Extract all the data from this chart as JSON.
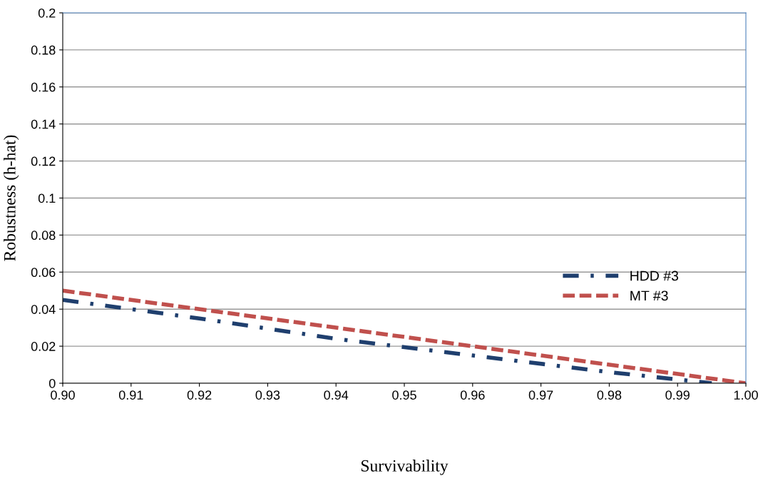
{
  "chart_data": {
    "type": "line",
    "xlabel": "Survivability",
    "ylabel": "Robustness (h-hat)",
    "xlim": [
      0.9,
      1.0
    ],
    "xticks": [
      {
        "value": 0.9,
        "label": "0.90"
      },
      {
        "value": 0.91,
        "label": "0.91"
      },
      {
        "value": 0.92,
        "label": "0.92"
      },
      {
        "value": 0.93,
        "label": "0.93"
      },
      {
        "value": 0.94,
        "label": "0.94"
      },
      {
        "value": 0.95,
        "label": "0.95"
      },
      {
        "value": 0.96,
        "label": "0.96"
      },
      {
        "value": 0.97,
        "label": "0.97"
      },
      {
        "value": 0.98,
        "label": "0.98"
      },
      {
        "value": 0.99,
        "label": "0.99"
      },
      {
        "value": 1.0,
        "label": "1.00"
      }
    ],
    "ylim": [
      0,
      0.2
    ],
    "yticks": [
      0,
      0.02,
      0.04,
      0.06,
      0.08,
      0.1,
      0.12,
      0.14,
      0.16,
      0.18,
      0.2
    ],
    "grid": "y",
    "legend": "right",
    "marker": "none",
    "series": [
      {
        "name": "HDD #3",
        "color": "#1f3f6e",
        "line_style": "dashdot",
        "x": [
          0.9,
          0.92,
          0.94,
          0.96,
          0.98,
          0.995
        ],
        "values": [
          0.045,
          0.035,
          0.024,
          0.015,
          0.006,
          0
        ]
      },
      {
        "name": "MT #3",
        "color": "#c0504d",
        "line_style": "dashed",
        "x": [
          0.9,
          0.95,
          1.0
        ],
        "values": [
          0.05,
          0.025,
          0
        ]
      }
    ]
  }
}
